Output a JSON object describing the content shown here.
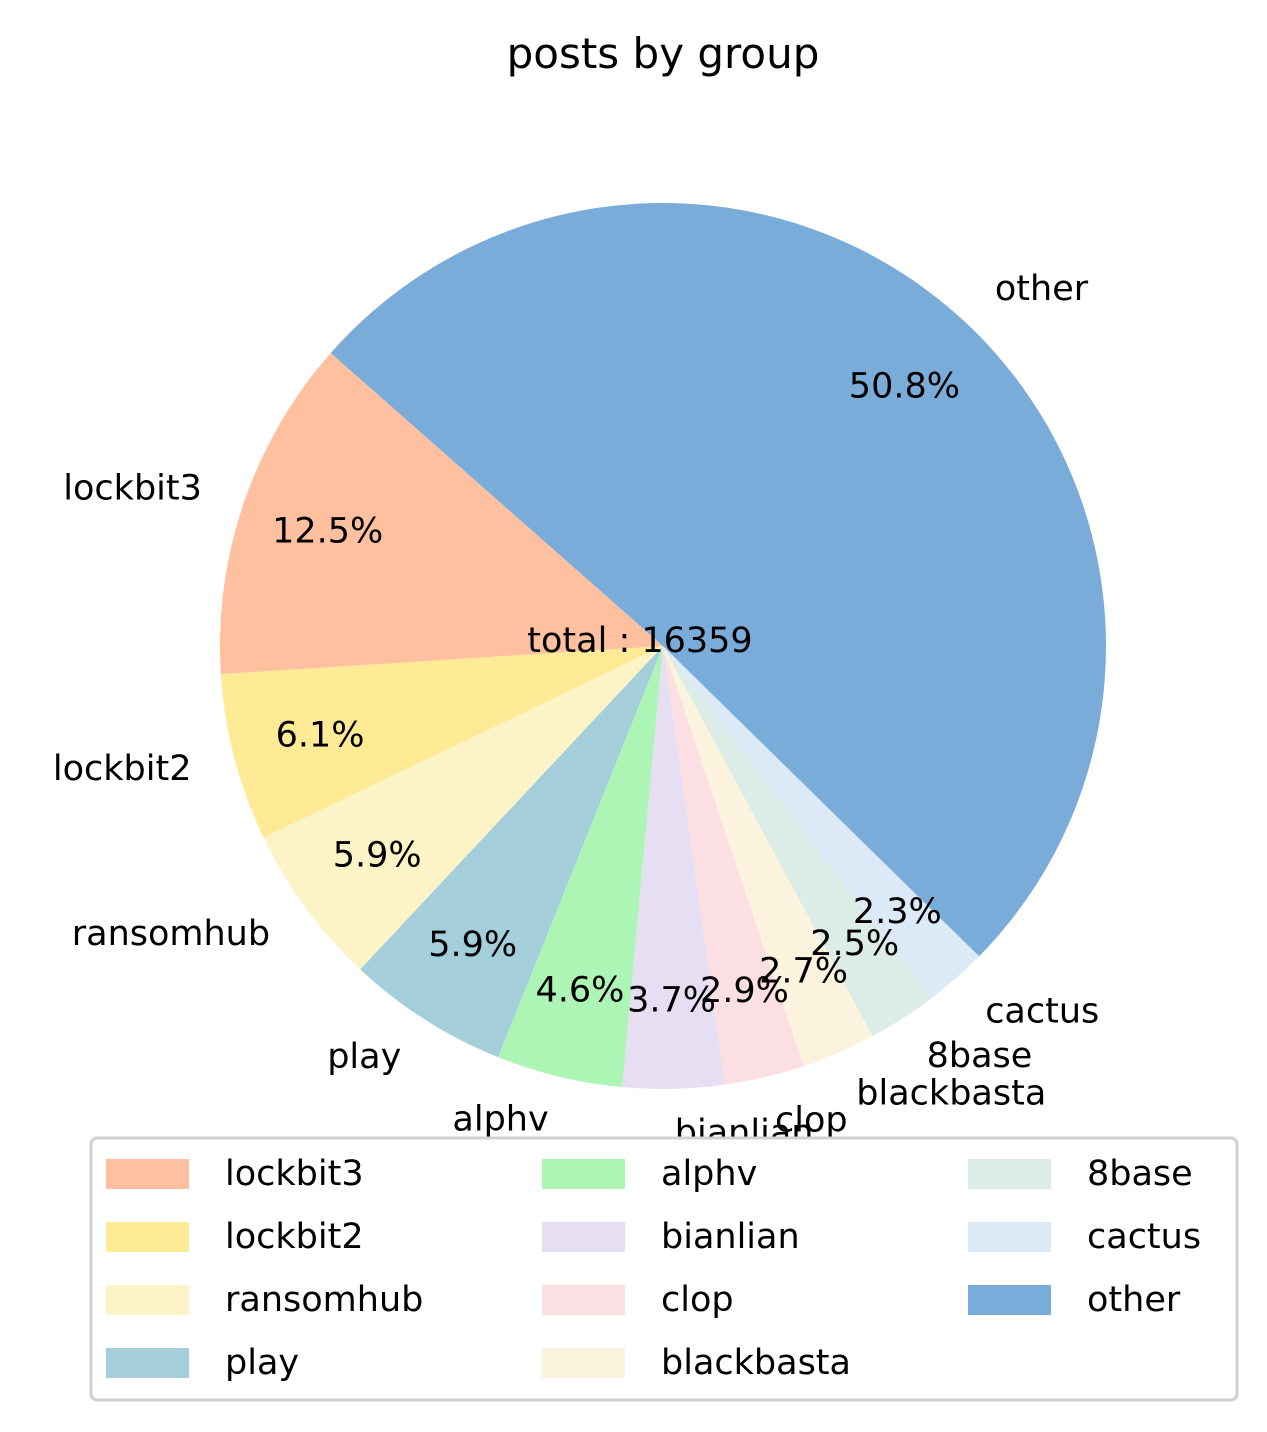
{
  "chart_data": {
    "type": "pie",
    "title": "posts by group",
    "center_label": "total : 16359",
    "slices": [
      {
        "label": "lockbit3",
        "pct_label": "12.5%",
        "value": 12.5,
        "color": "#fec09f"
      },
      {
        "label": "lockbit2",
        "pct_label": "6.1%",
        "value": 6.1,
        "color": "#ffeb96"
      },
      {
        "label": "ransomhub",
        "pct_label": "5.9%",
        "value": 5.9,
        "color": "#fcf4c6"
      },
      {
        "label": "play",
        "pct_label": "5.9%",
        "value": 5.9,
        "color": "#a3ceda"
      },
      {
        "label": "alphv",
        "pct_label": "4.6%",
        "value": 4.6,
        "color": "#adf5b4"
      },
      {
        "label": "bianlian",
        "pct_label": "3.7%",
        "value": 3.7,
        "color": "#e6dff3"
      },
      {
        "label": "clop",
        "pct_label": "2.9%",
        "value": 2.9,
        "color": "#fcdfe2"
      },
      {
        "label": "blackbasta",
        "pct_label": "2.7%",
        "value": 2.7,
        "color": "#fcf3de"
      },
      {
        "label": "8base",
        "pct_label": "2.5%",
        "value": 2.5,
        "color": "#dcece6"
      },
      {
        "label": "cactus",
        "pct_label": "2.3%",
        "value": 2.3,
        "color": "#dce9f6"
      },
      {
        "label": "other",
        "pct_label": "50.8%",
        "value": 50.8,
        "color": "#7aacda"
      }
    ],
    "legend": {
      "placement": "bottom",
      "columns": [
        [
          "lockbit3",
          "lockbit2",
          "ransomhub",
          "play"
        ],
        [
          "alphv",
          "bianlian",
          "clop",
          "blackbasta"
        ],
        [
          "8base",
          "cactus",
          "other"
        ]
      ]
    }
  }
}
